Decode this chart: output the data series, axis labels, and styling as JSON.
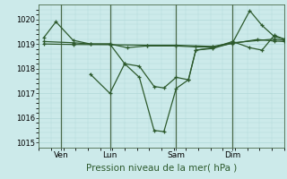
{
  "background_color": "#cceaea",
  "line_color": "#2d5a2d",
  "grid_color": "#b0d8d8",
  "vline_color": "#4a6a4a",
  "title": "Pression niveau de la mer( hPa )",
  "ylim": [
    1014.8,
    1020.6
  ],
  "yticks": [
    1015,
    1016,
    1017,
    1018,
    1019,
    1020
  ],
  "day_labels": [
    "Ven",
    "Lun",
    "Sam",
    "Dim"
  ],
  "day_positions": [
    0.09,
    0.29,
    0.56,
    0.79
  ],
  "vline_positions": [
    0.09,
    0.29,
    0.56,
    0.79
  ],
  "lines": [
    [
      0.02,
      1019.25,
      0.07,
      1019.9,
      0.14,
      1019.15,
      0.21,
      1019.0,
      0.29,
      1019.0,
      0.35,
      1018.2,
      0.41,
      1017.65,
      0.47,
      1015.5,
      0.51,
      1015.45,
      0.56,
      1017.2,
      0.61,
      1017.55,
      0.64,
      1018.75,
      0.71,
      1018.82,
      0.79,
      1019.05,
      0.86,
      1020.35,
      0.91,
      1019.75,
      0.96,
      1019.3,
      1.0,
      1019.2
    ],
    [
      0.02,
      1019.1,
      0.14,
      1019.05,
      0.21,
      1019.0,
      0.29,
      1019.0,
      0.36,
      1018.85,
      0.44,
      1018.92,
      0.56,
      1018.92,
      0.64,
      1018.88,
      0.71,
      1018.88,
      0.79,
      1019.02,
      0.89,
      1019.18,
      0.96,
      1019.12,
      1.0,
      1019.1
    ],
    [
      0.02,
      1019.0,
      0.14,
      1018.98,
      0.29,
      1018.97,
      0.44,
      1018.95,
      0.56,
      1018.95,
      0.71,
      1018.9,
      0.79,
      1019.05,
      0.96,
      1019.2,
      1.0,
      1019.15
    ],
    [
      0.21,
      1017.78,
      0.29,
      1017.0,
      0.35,
      1018.2,
      0.41,
      1018.1,
      0.47,
      1017.28,
      0.51,
      1017.22,
      0.56,
      1017.65,
      0.61,
      1017.55,
      0.64,
      1018.75,
      0.71,
      1018.85,
      0.79,
      1019.1,
      0.86,
      1018.85,
      0.91,
      1018.75,
      0.96,
      1019.35,
      1.0,
      1019.2
    ]
  ]
}
